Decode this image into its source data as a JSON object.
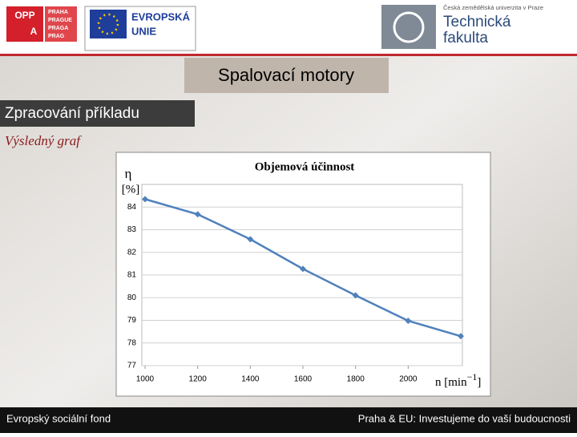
{
  "header": {
    "oppa": {
      "big": "OPP",
      "a": "A",
      "city": [
        "PRAHA",
        "PRAGUE",
        "PRAGA",
        "PRAG"
      ]
    },
    "eu": [
      "EVROPSKÁ",
      "UNIE"
    ],
    "uni": {
      "small": "Česká zemědělská univerzita v Praze",
      "name": [
        "Technická",
        "fakulta"
      ]
    }
  },
  "slide": {
    "title": "Spalovací motory",
    "section": "Zpracování příkladu",
    "subtitle": "Výsledný graf"
  },
  "footer": {
    "left": "Evropský sociální fond",
    "right": "Praha & EU: Investujeme do vaší budoucnosti"
  },
  "chart_data": {
    "type": "line",
    "title": "Objemová účinnost",
    "y_label": "η",
    "y_unit": "[%]",
    "x_label": {
      "text": "n [min",
      "sup": "−1",
      "end": "]"
    },
    "x": [
      1000,
      1200,
      1400,
      1600,
      1800,
      2000,
      2200
    ],
    "series": [
      {
        "name": "Objemová účinnost",
        "color": "#4f81bd",
        "values": [
          84.35,
          83.68,
          82.58,
          81.27,
          80.1,
          78.98,
          78.3
        ]
      }
    ],
    "xlim": [
      1000,
      2200
    ],
    "xticks": [
      1000,
      1200,
      1400,
      1600,
      1800,
      2000
    ],
    "ylim": [
      77,
      85
    ],
    "yticks": [
      77,
      78,
      79,
      80,
      81,
      82,
      83,
      84
    ],
    "grid": true
  }
}
